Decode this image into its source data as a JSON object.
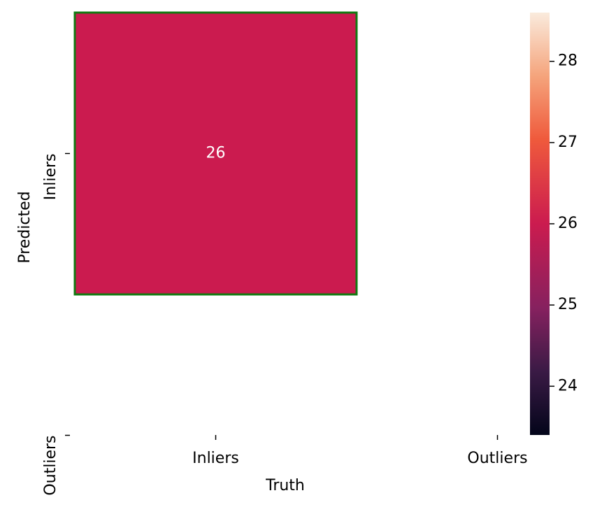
{
  "chart_data": {
    "type": "heatmap",
    "x_label": "Truth",
    "y_label": "Predicted",
    "x_categories": [
      "Inliers",
      "Outliers"
    ],
    "y_categories": [
      "Inliers",
      "Outliers"
    ],
    "values": [
      [
        26,
        null
      ],
      [
        null,
        null
      ]
    ],
    "cell_edge_color": "#117a11",
    "annotation_color": "#ffffff",
    "colormap": [
      [
        0,
        "#03051a"
      ],
      [
        0.15,
        "#3a1a45"
      ],
      [
        0.3,
        "#86215f"
      ],
      [
        0.5,
        "#cb1b4f"
      ],
      [
        0.7,
        "#ef5a3c"
      ],
      [
        0.85,
        "#f5a47c"
      ],
      [
        1,
        "#faebdd"
      ]
    ],
    "colorbar_lim": [
      23.4,
      28.6
    ],
    "colorbar_ticks": [
      24,
      25,
      26,
      27,
      28
    ]
  }
}
